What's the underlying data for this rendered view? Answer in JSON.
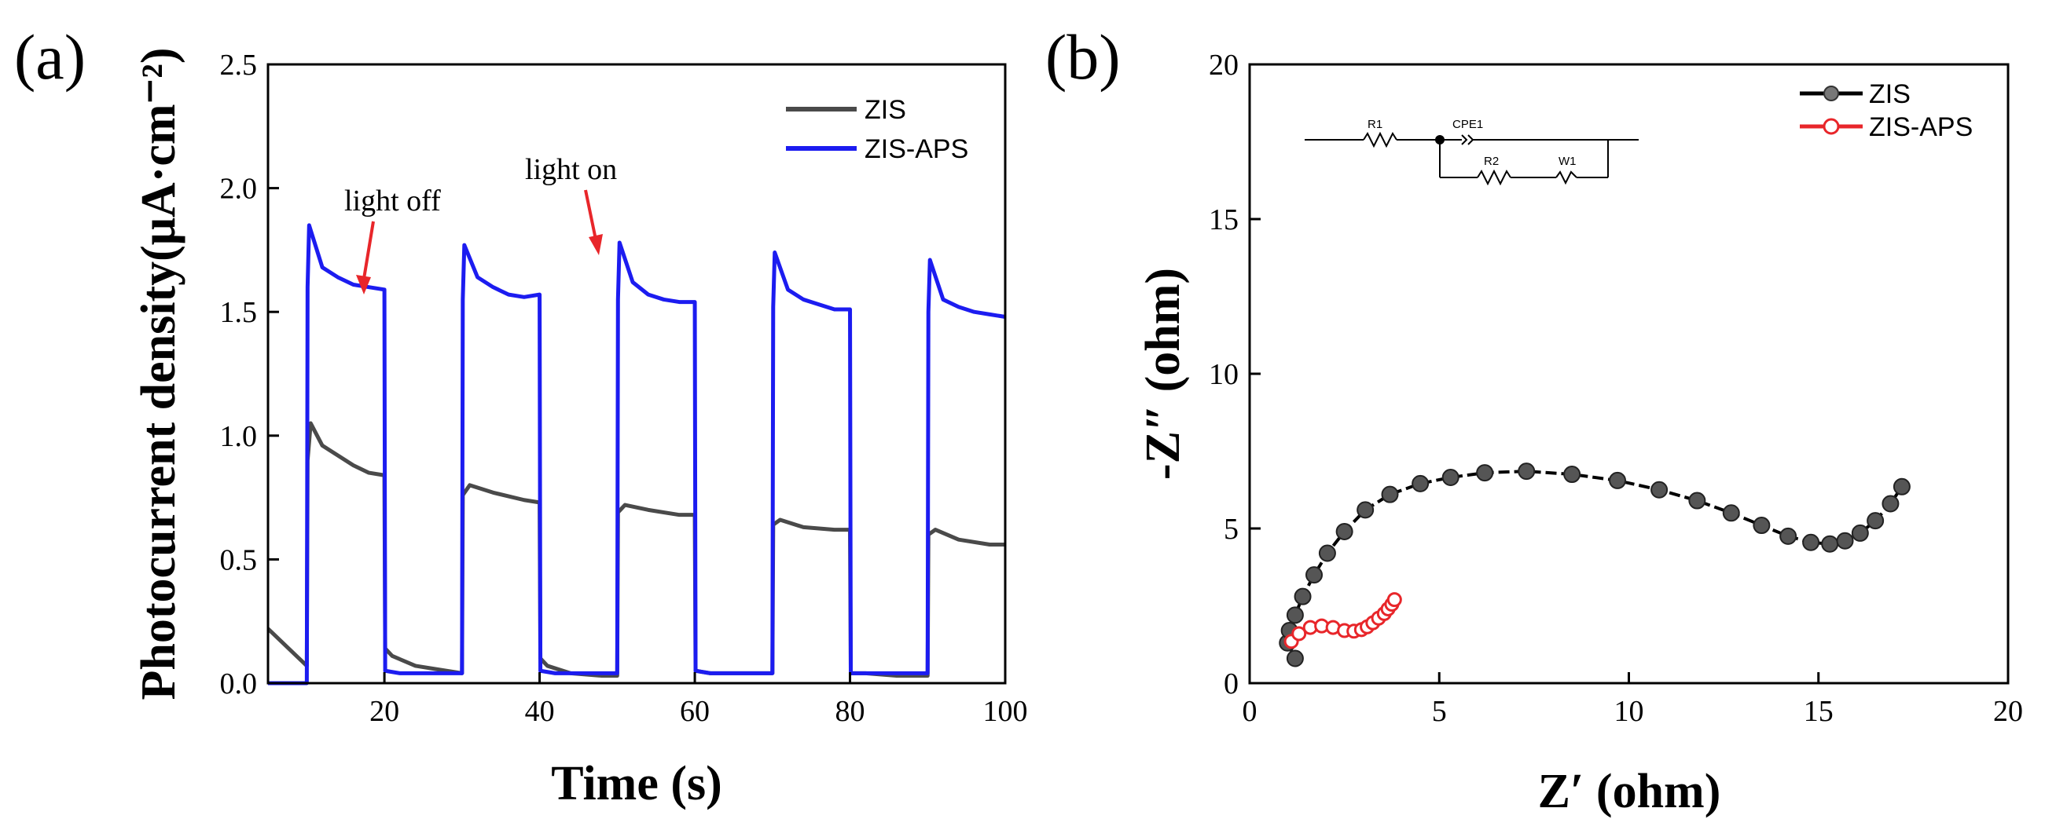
{
  "chart_data": [
    {
      "panel": "(a)",
      "type": "line",
      "xlabel": "Time (s)",
      "ylabel": "Photocurrent density(μA·cm⁻²)",
      "xlim": [
        5,
        100
      ],
      "ylim": [
        0,
        2.5
      ],
      "xticks": [
        "20",
        "40",
        "60",
        "80",
        "100"
      ],
      "yticks": [
        "0.0",
        "0.5",
        "1.0",
        "1.5",
        "2.0",
        "2.5"
      ],
      "legend_position": "top-right",
      "grid": false,
      "annotations": [
        {
          "text": "light off",
          "x": 20,
          "y": 1.59
        },
        {
          "text": "light on",
          "x": 50,
          "y": 1.72
        }
      ],
      "series": [
        {
          "name": "ZIS",
          "color": "#4a4a4a",
          "x": [
            5,
            10,
            10.1,
            10.5,
            12,
            14,
            16,
            18,
            20,
            20.1,
            21,
            24,
            28,
            30,
            30.1,
            31,
            34,
            38,
            40,
            40.1,
            41,
            44,
            48,
            50,
            50.1,
            51,
            54,
            58,
            60,
            60.1,
            62,
            66,
            70,
            70.1,
            71,
            74,
            78,
            80,
            80.1,
            82,
            86,
            90,
            90.1,
            91,
            94,
            98,
            100
          ],
          "y": [
            0.22,
            0.07,
            0.9,
            1.05,
            0.96,
            0.92,
            0.88,
            0.85,
            0.84,
            0.14,
            0.11,
            0.07,
            0.05,
            0.04,
            0.76,
            0.8,
            0.77,
            0.74,
            0.73,
            0.1,
            0.07,
            0.04,
            0.03,
            0.03,
            0.69,
            0.72,
            0.7,
            0.68,
            0.68,
            0.05,
            0.04,
            0.04,
            0.04,
            0.64,
            0.66,
            0.63,
            0.62,
            0.62,
            0.04,
            0.04,
            0.03,
            0.03,
            0.6,
            0.62,
            0.58,
            0.56,
            0.56
          ]
        },
        {
          "name": "ZIS-APS",
          "color": "#1c1cf0",
          "x": [
            5,
            10,
            10.1,
            10.3,
            12,
            14,
            16,
            18,
            20,
            20.1,
            22,
            26,
            30,
            30.1,
            30.3,
            32,
            34,
            36,
            38,
            40,
            40.1,
            42,
            46,
            50,
            50.1,
            50.3,
            52,
            54,
            56,
            58,
            60,
            60.1,
            62,
            66,
            70,
            70.1,
            70.3,
            72,
            74,
            76,
            78,
            80,
            80.1,
            82,
            86,
            90,
            90.1,
            90.3,
            92,
            94,
            96,
            98,
            100
          ],
          "y": [
            0,
            0,
            1.6,
            1.85,
            1.68,
            1.64,
            1.61,
            1.6,
            1.59,
            0.05,
            0.04,
            0.04,
            0.04,
            1.55,
            1.77,
            1.64,
            1.6,
            1.57,
            1.56,
            1.57,
            0.05,
            0.04,
            0.04,
            0.04,
            1.55,
            1.78,
            1.62,
            1.57,
            1.55,
            1.54,
            1.54,
            0.05,
            0.04,
            0.04,
            0.04,
            1.52,
            1.74,
            1.59,
            1.55,
            1.53,
            1.51,
            1.51,
            0.04,
            0.04,
            0.04,
            0.04,
            1.5,
            1.71,
            1.55,
            1.52,
            1.5,
            1.49,
            1.48
          ]
        }
      ]
    },
    {
      "panel": "(b)",
      "type": "scatter",
      "xlabel": "Z′ (ohm)",
      "ylabel": "-Z″ (ohm)",
      "xlim": [
        0,
        20
      ],
      "ylim": [
        0,
        20
      ],
      "xticks": [
        "0",
        "5",
        "10",
        "15",
        "20"
      ],
      "yticks": [
        "0",
        "5",
        "10",
        "15",
        "20"
      ],
      "legend_position": "top-right",
      "grid": false,
      "circuit": {
        "labels": [
          "R1",
          "CPE1",
          "R2",
          "W1"
        ]
      },
      "series": [
        {
          "name": "ZIS",
          "color": "#555555",
          "line_color": "#000000",
          "x": [
            1.2,
            1.0,
            1.05,
            1.2,
            1.4,
            1.7,
            2.05,
            2.5,
            3.05,
            3.7,
            4.5,
            5.3,
            6.2,
            7.3,
            8.5,
            9.7,
            10.8,
            11.8,
            12.7,
            13.5,
            14.2,
            14.8,
            15.3,
            15.7,
            16.1,
            16.5,
            16.9,
            17.2
          ],
          "y": [
            0.8,
            1.3,
            1.7,
            2.2,
            2.8,
            3.5,
            4.2,
            4.9,
            5.6,
            6.1,
            6.45,
            6.65,
            6.8,
            6.85,
            6.75,
            6.55,
            6.25,
            5.9,
            5.5,
            5.1,
            4.75,
            4.55,
            4.5,
            4.6,
            4.85,
            5.25,
            5.8,
            6.35
          ]
        },
        {
          "name": "ZIS-APS",
          "color": "#e8262a",
          "x": [
            1.1,
            1.3,
            1.6,
            1.9,
            2.2,
            2.5,
            2.75,
            2.95,
            3.1,
            3.25,
            3.4,
            3.55,
            3.65,
            3.75,
            3.82
          ],
          "y": [
            1.35,
            1.6,
            1.8,
            1.85,
            1.8,
            1.7,
            1.68,
            1.73,
            1.82,
            1.95,
            2.1,
            2.25,
            2.4,
            2.55,
            2.7
          ]
        }
      ]
    }
  ]
}
